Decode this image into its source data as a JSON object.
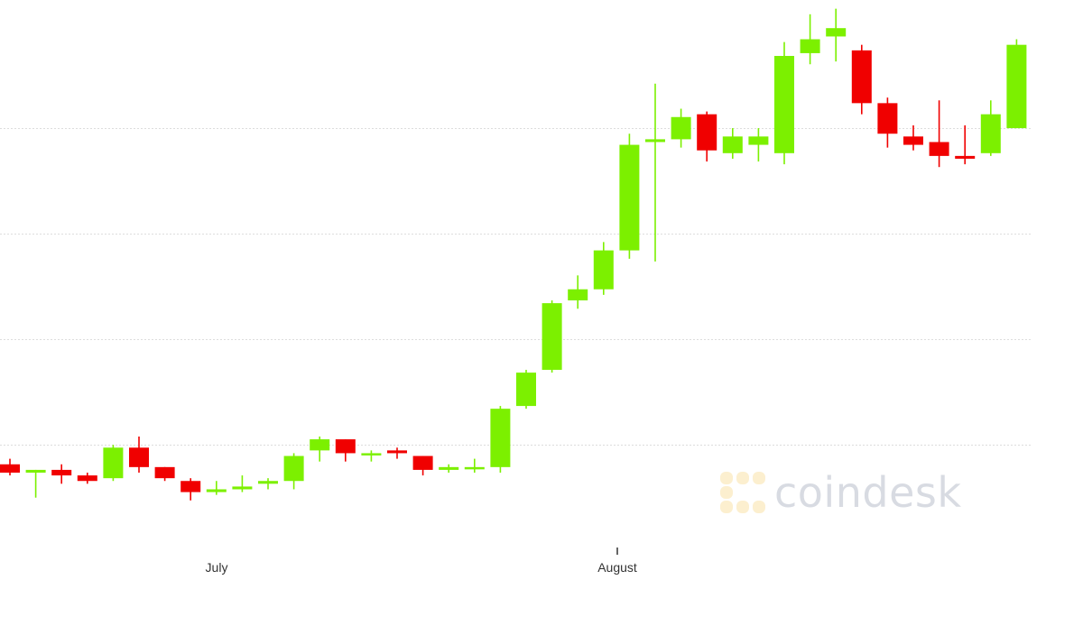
{
  "chart_data": {
    "type": "candlestick",
    "title": "",
    "xlabel": "",
    "ylabel": "",
    "x_tick_labels": [
      "July",
      "August"
    ],
    "grid": true,
    "y_range": [
      0,
      100
    ],
    "gridline_values": [
      82,
      63,
      44,
      25
    ],
    "colors": {
      "up": "#7cf000",
      "down": "#f00000",
      "grid": "#dddddd"
    },
    "candles": [
      {
        "open": 21.5,
        "high": 22.5,
        "low": 19.5,
        "close": 20.0
      },
      {
        "open": 20.0,
        "high": 20.5,
        "low": 15.5,
        "close": 20.5
      },
      {
        "open": 20.5,
        "high": 21.5,
        "low": 18.0,
        "close": 19.5
      },
      {
        "open": 19.5,
        "high": 20.0,
        "low": 18.0,
        "close": 18.5
      },
      {
        "open": 19.0,
        "high": 25.0,
        "low": 18.5,
        "close": 24.5
      },
      {
        "open": 24.5,
        "high": 26.5,
        "low": 20.0,
        "close": 21.0
      },
      {
        "open": 21.0,
        "high": 21.0,
        "low": 18.5,
        "close": 19.0
      },
      {
        "open": 18.5,
        "high": 19.0,
        "low": 15.0,
        "close": 16.5
      },
      {
        "open": 16.5,
        "high": 18.5,
        "low": 16.0,
        "close": 17.0
      },
      {
        "open": 17.0,
        "high": 19.5,
        "low": 16.5,
        "close": 17.5
      },
      {
        "open": 18.0,
        "high": 19.0,
        "low": 17.0,
        "close": 18.5
      },
      {
        "open": 18.5,
        "high": 23.5,
        "low": 17.0,
        "close": 23.0
      },
      {
        "open": 24.0,
        "high": 26.5,
        "low": 22.0,
        "close": 26.0
      },
      {
        "open": 26.0,
        "high": 26.0,
        "low": 22.0,
        "close": 23.5
      },
      {
        "open": 23.5,
        "high": 24.0,
        "low": 22.0,
        "close": 23.5
      },
      {
        "open": 24.0,
        "high": 24.5,
        "low": 22.5,
        "close": 23.5
      },
      {
        "open": 23.0,
        "high": 23.0,
        "low": 19.5,
        "close": 20.5
      },
      {
        "open": 20.5,
        "high": 21.5,
        "low": 20.0,
        "close": 21.0
      },
      {
        "open": 21.0,
        "high": 22.5,
        "low": 20.0,
        "close": 21.0
      },
      {
        "open": 21.0,
        "high": 32.0,
        "low": 20.0,
        "close": 31.5
      },
      {
        "open": 32.0,
        "high": 38.5,
        "low": 31.5,
        "close": 38.0
      },
      {
        "open": 38.5,
        "high": 51.0,
        "low": 38.0,
        "close": 50.5
      },
      {
        "open": 51.0,
        "high": 55.5,
        "low": 49.5,
        "close": 53.0
      },
      {
        "open": 53.0,
        "high": 61.5,
        "low": 52.0,
        "close": 60.0
      },
      {
        "open": 60.0,
        "high": 81.0,
        "low": 58.5,
        "close": 79.0
      },
      {
        "open": 79.5,
        "high": 90.0,
        "low": 58.0,
        "close": 80.0
      },
      {
        "open": 80.0,
        "high": 85.5,
        "low": 78.5,
        "close": 84.0
      },
      {
        "open": 84.5,
        "high": 85.0,
        "low": 76.0,
        "close": 78.0
      },
      {
        "open": 77.5,
        "high": 82.0,
        "low": 76.5,
        "close": 80.5
      },
      {
        "open": 79.0,
        "high": 82.0,
        "low": 76.0,
        "close": 80.5
      },
      {
        "open": 77.5,
        "high": 97.5,
        "low": 75.5,
        "close": 95.0
      },
      {
        "open": 95.5,
        "high": 102.5,
        "low": 93.5,
        "close": 98.0
      },
      {
        "open": 98.5,
        "high": 103.5,
        "low": 94.0,
        "close": 100.0
      },
      {
        "open": 96.0,
        "high": 97.0,
        "low": 84.5,
        "close": 86.5
      },
      {
        "open": 86.5,
        "high": 87.5,
        "low": 78.5,
        "close": 81.0
      },
      {
        "open": 80.5,
        "high": 82.5,
        "low": 78.0,
        "close": 79.0
      },
      {
        "open": 79.5,
        "high": 87.0,
        "low": 75.0,
        "close": 77.0
      },
      {
        "open": 77.0,
        "high": 82.5,
        "low": 75.5,
        "close": 76.5
      },
      {
        "open": 77.5,
        "high": 87.0,
        "low": 77.0,
        "close": 84.5
      },
      {
        "open": 82.0,
        "high": 98.0,
        "low": 82.0,
        "close": 97.0
      }
    ]
  },
  "watermark": {
    "text": "coindesk",
    "logo_icon": "coindesk-logo-icon"
  }
}
